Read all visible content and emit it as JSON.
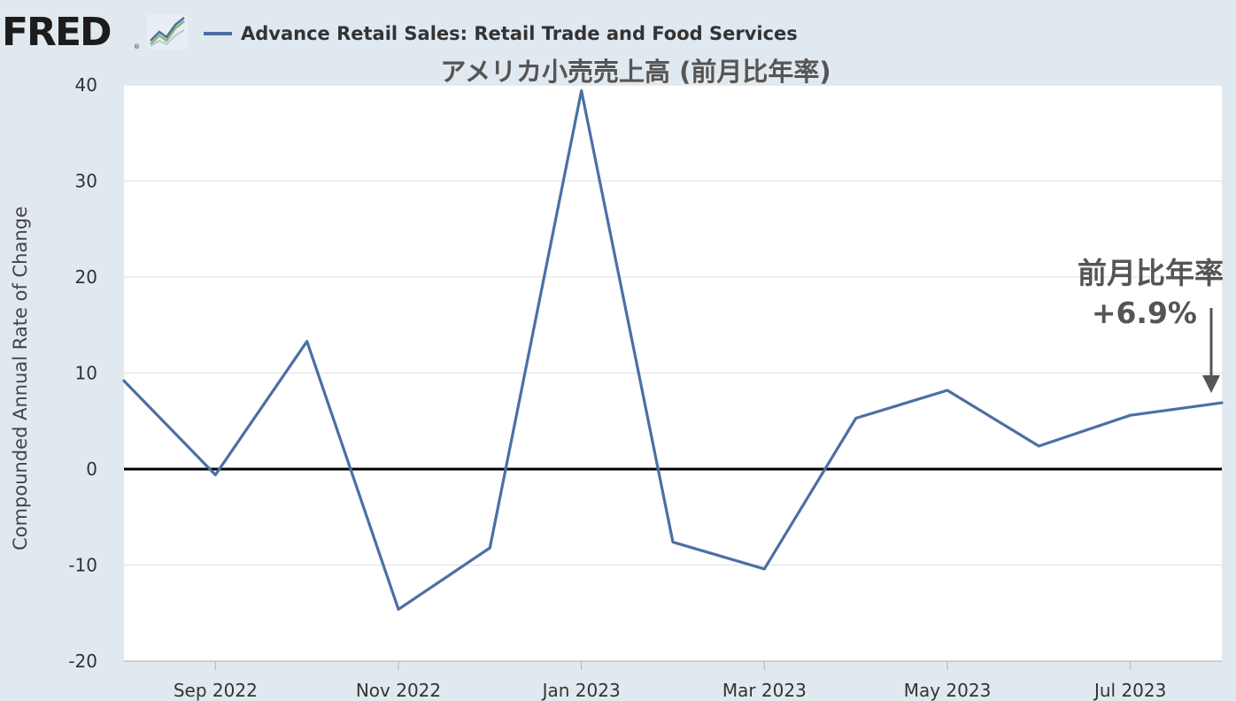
{
  "header": {
    "logo_text": "FRED",
    "logo_reg": "®",
    "icon": "fred-graph-icon",
    "legend_label": "Advance Retail Sales: Retail Trade and Food Services",
    "legend_color": "#4c6fa3"
  },
  "annotation": {
    "label": "前月比年率",
    "value": "+6.9%"
  },
  "chart_data": {
    "type": "line",
    "title": "アメリカ小売売上高 (前月比年率)",
    "xlabel": "",
    "ylabel": "Compounded Annual Rate of Change",
    "ylim": [
      -20,
      40
    ],
    "yticks": [
      -20,
      -10,
      0,
      10,
      20,
      30,
      40
    ],
    "ytick_labels": [
      "-20",
      "-10",
      "0",
      "10",
      "20",
      "30",
      "40"
    ],
    "xticks": [
      "2022-09",
      "2022-11",
      "2023-01",
      "2023-03",
      "2023-05",
      "2023-07"
    ],
    "xtick_labels": [
      "Sep 2022",
      "Nov 2022",
      "Jan 2023",
      "Mar 2023",
      "May 2023",
      "Jul 2023"
    ],
    "grid": true,
    "zero_line": true,
    "series": [
      {
        "name": "Advance Retail Sales: Retail Trade and Food Services",
        "color": "#4c6fa3",
        "x": [
          "2022-08",
          "2022-09",
          "2022-10",
          "2022-11",
          "2022-12",
          "2023-01",
          "2023-02",
          "2023-03",
          "2023-04",
          "2023-05",
          "2023-06",
          "2023-07",
          "2023-08"
        ],
        "values": [
          9.2,
          -0.6,
          13.3,
          -14.6,
          -8.2,
          39.4,
          -7.6,
          -10.4,
          5.3,
          8.2,
          2.4,
          5.6,
          6.9
        ]
      }
    ]
  }
}
